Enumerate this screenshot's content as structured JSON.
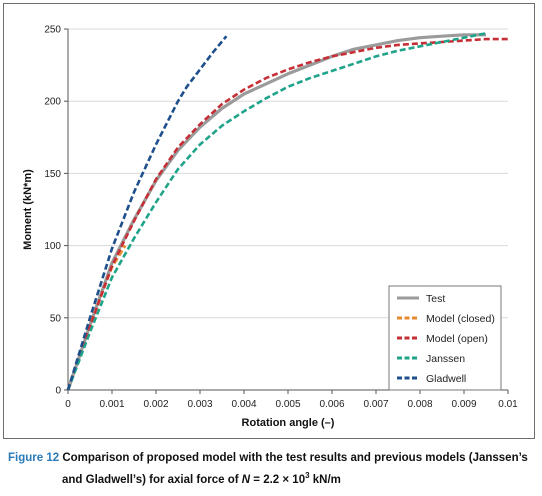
{
  "chart_data": {
    "type": "line",
    "xlabel": "Rotation angle (–)",
    "ylabel": "Moment (kN*m)",
    "xlim": [
      0,
      0.01
    ],
    "ylim": [
      0,
      250
    ],
    "x_ticks": [
      "0",
      "0.001",
      "0.002",
      "0.003",
      "0.004",
      "0.005",
      "0.006",
      "0.007",
      "0.008",
      "0.009",
      "0.01"
    ],
    "y_ticks": [
      "0",
      "50",
      "100",
      "150",
      "200",
      "250"
    ],
    "grid": "horizontal",
    "legend_position": "bottom-right",
    "series": [
      {
        "name": "Test",
        "color": "#9b9b9b",
        "style": "solid",
        "x": [
          0,
          0.0005,
          0.001,
          0.0015,
          0.002,
          0.0025,
          0.003,
          0.0035,
          0.004,
          0.0045,
          0.005,
          0.0055,
          0.006,
          0.0065,
          0.007,
          0.0075,
          0.008,
          0.0085,
          0.009,
          0.0095
        ],
        "y": [
          0,
          45,
          88,
          118,
          145,
          166,
          182,
          195,
          205,
          212,
          219,
          225,
          231,
          236,
          239,
          242,
          244,
          245,
          246,
          246
        ]
      },
      {
        "name": "Model (closed)",
        "color": "#e88a2e",
        "style": "dashed",
        "x": [
          0,
          0.0005,
          0.001,
          0.0013
        ],
        "y": [
          0,
          45,
          85,
          100
        ]
      },
      {
        "name": "Model (open)",
        "color": "#c62f36",
        "style": "dashed",
        "x": [
          0,
          0.0005,
          0.001,
          0.0015,
          0.002,
          0.0025,
          0.003,
          0.0035,
          0.004,
          0.0045,
          0.005,
          0.0055,
          0.006,
          0.0065,
          0.007,
          0.0075,
          0.008,
          0.0085,
          0.009,
          0.0095,
          0.01
        ],
        "y": [
          0,
          44,
          86,
          117,
          146,
          168,
          184,
          198,
          208,
          216,
          222,
          227,
          231,
          234,
          237,
          239,
          240,
          241,
          242,
          243,
          243
        ]
      },
      {
        "name": "Janssen",
        "color": "#1fa38a",
        "style": "dashed",
        "x": [
          0,
          0.0005,
          0.001,
          0.0015,
          0.002,
          0.0025,
          0.003,
          0.0035,
          0.004,
          0.0045,
          0.005,
          0.0055,
          0.006,
          0.0065,
          0.007,
          0.0075,
          0.008,
          0.0085,
          0.009,
          0.0095
        ],
        "y": [
          0,
          40,
          78,
          105,
          130,
          153,
          170,
          183,
          193,
          202,
          210,
          216,
          221,
          226,
          231,
          235,
          238,
          241,
          244,
          247
        ]
      },
      {
        "name": "Gladwell",
        "color": "#1f4f8c",
        "style": "dashed",
        "x": [
          0,
          0.0005,
          0.001,
          0.0015,
          0.002,
          0.0025,
          0.0027,
          0.003,
          0.0033,
          0.0036
        ],
        "y": [
          0,
          50,
          98,
          137,
          170,
          200,
          210,
          222,
          234,
          245
        ]
      }
    ]
  },
  "caption": {
    "figure_label": "Figure 12",
    "text_line1": "Comparison of proposed model with the test results and previous models (Janssen’s",
    "text_line2_prefix": "and Gladwell’s) for axial force of ",
    "text_line2_symbol": "N",
    "text_line2_eq": " = 2.2 × 10",
    "text_line2_exp": "3",
    "text_line2_unit": " kN/m"
  }
}
